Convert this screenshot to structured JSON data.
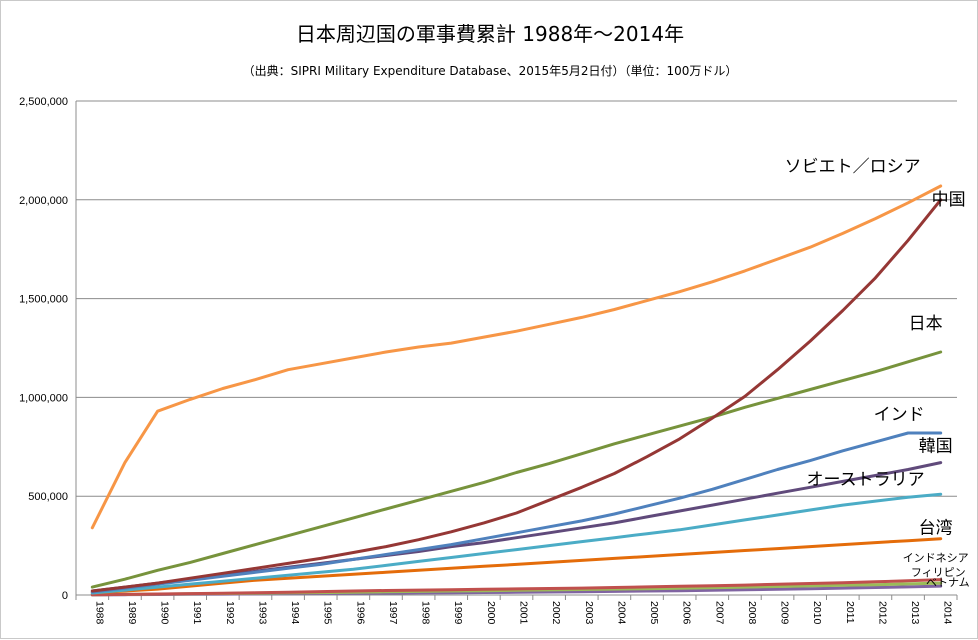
{
  "chart_data": {
    "type": "line",
    "title": "日本周辺国の軍事費累計 1988年～2014年",
    "subtitle": "（出典：SIPRI Military Expenditure Database、2015年5月2日付）（単位：100万ドル）",
    "xlabel": "",
    "ylabel": "",
    "ylim": [
      0,
      2500000
    ],
    "yticks": [
      "0",
      "500,000",
      "1,000,000",
      "1,500,000",
      "2,000,000",
      "2,500,000"
    ],
    "grid": true,
    "legend": "none",
    "x": [
      "1988",
      "1989",
      "1990",
      "1991",
      "1992",
      "1993",
      "1994",
      "1995",
      "1996",
      "1997",
      "1998",
      "1999",
      "2000",
      "2001",
      "2002",
      "2003",
      "2004",
      "2005",
      "2006",
      "2007",
      "2008",
      "2009",
      "2010",
      "2011",
      "2012",
      "2013",
      "2014"
    ],
    "series": [
      {
        "name": "ソビエト／ロシア",
        "color": "#f79646",
        "values": [
          340000,
          670000,
          930000,
          990000,
          1045000,
          1090000,
          1140000,
          1170000,
          1200000,
          1230000,
          1255000,
          1275000,
          1305000,
          1335000,
          1370000,
          1405000,
          1445000,
          1490000,
          1535000,
          1585000,
          1640000,
          1700000,
          1760000,
          1830000,
          1905000,
          1985000,
          2070000
        ]
      },
      {
        "name": "中国",
        "color": "#953735",
        "values": [
          20000,
          40000,
          60000,
          85000,
          110000,
          135000,
          160000,
          185000,
          215000,
          245000,
          280000,
          320000,
          365000,
          415000,
          480000,
          545000,
          615000,
          700000,
          790000,
          895000,
          1005000,
          1140000,
          1285000,
          1440000,
          1605000,
          1795000,
          2000000
        ]
      },
      {
        "name": "日本",
        "color": "#77933c",
        "values": [
          40000,
          80000,
          125000,
          165000,
          210000,
          255000,
          300000,
          345000,
          390000,
          435000,
          480000,
          525000,
          570000,
          620000,
          665000,
          715000,
          765000,
          810000,
          855000,
          900000,
          950000,
          995000,
          1040000,
          1085000,
          1130000,
          1180000,
          1230000
        ]
      },
      {
        "name": "インド",
        "color": "#4f81bd",
        "values": [
          15000,
          35000,
          55000,
          75000,
          95000,
          115000,
          135000,
          155000,
          180000,
          205000,
          230000,
          255000,
          285000,
          315000,
          345000,
          375000,
          410000,
          450000,
          490000,
          535000,
          585000,
          635000,
          680000,
          730000,
          775000,
          820000,
          820000
        ]
      },
      {
        "name": "韓国",
        "color": "#604a7b",
        "values": [
          20000,
          40000,
          60000,
          80000,
          100000,
          120000,
          140000,
          160000,
          180000,
          200000,
          220000,
          245000,
          265000,
          290000,
          315000,
          340000,
          365000,
          395000,
          425000,
          455000,
          485000,
          515000,
          545000,
          575000,
          605000,
          635000,
          670000
        ]
      },
      {
        "name": "オーストラリア",
        "color": "#4bacc6",
        "values": [
          10000,
          25000,
          40000,
          55000,
          70000,
          85000,
          100000,
          115000,
          130000,
          150000,
          170000,
          190000,
          210000,
          230000,
          250000,
          270000,
          290000,
          310000,
          330000,
          355000,
          380000,
          405000,
          430000,
          455000,
          475000,
          495000,
          510000
        ]
      },
      {
        "name": "台湾",
        "color": "#e46c0a",
        "values": [
          10000,
          20000,
          30000,
          45000,
          60000,
          75000,
          85000,
          95000,
          105000,
          115000,
          125000,
          135000,
          145000,
          155000,
          165000,
          175000,
          185000,
          195000,
          205000,
          215000,
          225000,
          235000,
          245000,
          255000,
          265000,
          275000,
          285000
        ]
      },
      {
        "name": "インドネシア",
        "color": "#c0504d",
        "values": [
          1000,
          3000,
          5000,
          7000,
          9000,
          11000,
          14000,
          17000,
          20000,
          23000,
          25000,
          27000,
          29000,
          31000,
          33000,
          35000,
          38000,
          41000,
          44000,
          47000,
          50000,
          54000,
          58000,
          62000,
          67000,
          72000,
          78000
        ]
      },
      {
        "name": "フィリピン",
        "color": "#9bbb59",
        "values": [
          1500,
          3000,
          4500,
          6000,
          7500,
          9000,
          10500,
          12000,
          14000,
          16000,
          18000,
          20000,
          22000,
          24000,
          26000,
          28000,
          30000,
          32000,
          34000,
          37000,
          40000,
          43000,
          46000,
          49000,
          52000,
          56000,
          60000
        ]
      },
      {
        "name": "ベトナム",
        "color": "#8064a2",
        "values": [
          500,
          1500,
          2500,
          3500,
          4500,
          5500,
          6500,
          7500,
          8500,
          9500,
          10500,
          11500,
          12500,
          13500,
          15000,
          16500,
          18000,
          20000,
          22000,
          24000,
          26500,
          29000,
          32000,
          35000,
          38000,
          41000,
          45000
        ]
      }
    ]
  }
}
